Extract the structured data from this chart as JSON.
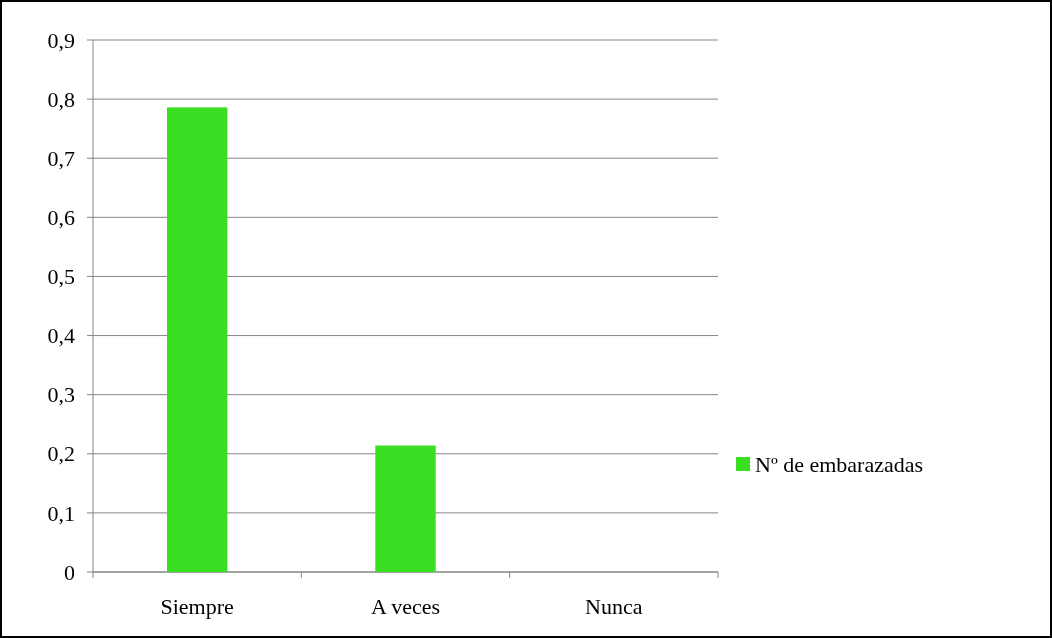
{
  "chart_data": {
    "type": "bar",
    "categories": [
      "Siempre",
      "A veces",
      "Nunca"
    ],
    "series": [
      {
        "name": "Nº de embarazadas",
        "color": "#3ade22",
        "values": [
          0.786,
          0.214,
          0
        ]
      }
    ],
    "ylim": [
      0,
      0.9
    ],
    "yticks": [
      {
        "value": 0,
        "label": "0"
      },
      {
        "value": 0.1,
        "label": "0,1"
      },
      {
        "value": 0.2,
        "label": "0,2"
      },
      {
        "value": 0.3,
        "label": "0,3"
      },
      {
        "value": 0.4,
        "label": "0,4"
      },
      {
        "value": 0.5,
        "label": "0,5"
      },
      {
        "value": 0.6,
        "label": "0,6"
      },
      {
        "value": 0.7,
        "label": "0,7"
      },
      {
        "value": 0.8,
        "label": "0,8"
      },
      {
        "value": 0.9,
        "label": "0,9"
      }
    ],
    "grid": "y",
    "legend": "right"
  }
}
